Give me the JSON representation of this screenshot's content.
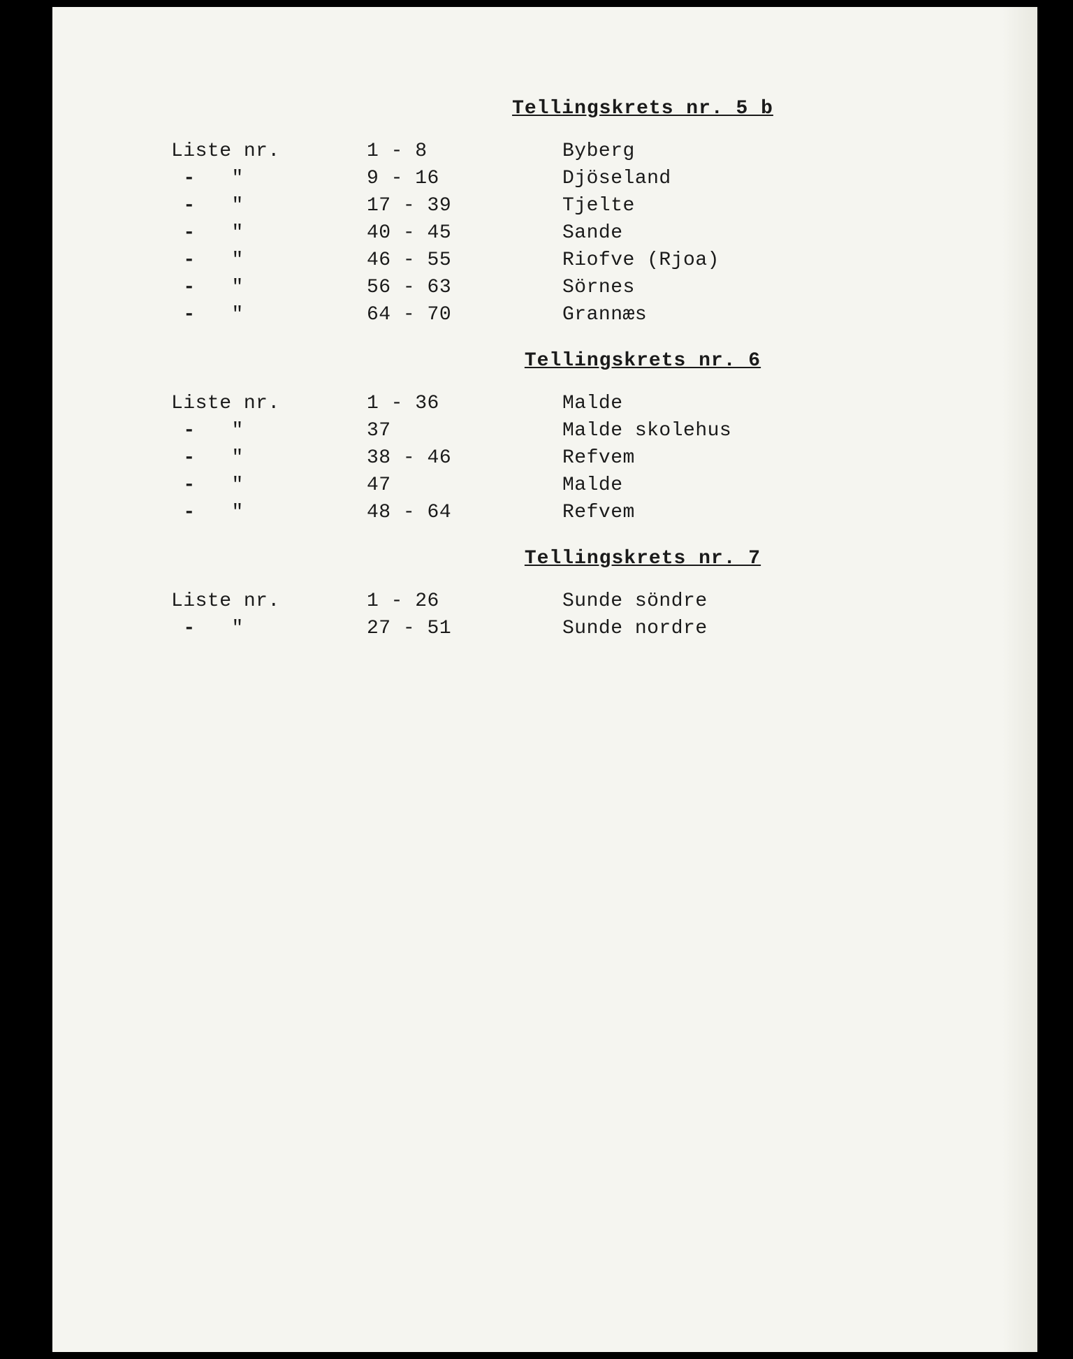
{
  "colors": {
    "page_bg": "#f5f5f0",
    "frame_bg": "#000000",
    "text": "#1a1a1a"
  },
  "typography": {
    "font_family": "Courier New",
    "font_size_pt": 21,
    "heading_weight": "bold"
  },
  "sections": [
    {
      "heading": "Tellingskrets nr. 5 b",
      "label": "Liste nr.",
      "rows": [
        {
          "range": "1 - 8",
          "name": "Byberg"
        },
        {
          "range": "9 - 16",
          "name": "Djöseland"
        },
        {
          "range": "17 - 39",
          "name": "Tjelte"
        },
        {
          "range": "40 - 45",
          "name": "Sande"
        },
        {
          "range": "46 - 55",
          "name": "Riofve (Rjoa)"
        },
        {
          "range": "56 - 63",
          "name": "Sörnes"
        },
        {
          "range": "64 - 70",
          "name": "Grannæs"
        }
      ]
    },
    {
      "heading": "Tellingskrets nr. 6",
      "label": "Liste nr.",
      "rows": [
        {
          "range": "1 - 36",
          "name": "Malde"
        },
        {
          "range": "37",
          "name": "Malde skolehus"
        },
        {
          "range": "38 - 46",
          "name": "Refvem"
        },
        {
          "range": "47",
          "name": "Malde"
        },
        {
          "range": "48 - 64",
          "name": "Refvem"
        }
      ]
    },
    {
      "heading": "Tellingskrets nr. 7",
      "label": "Liste nr.",
      "rows": [
        {
          "range": "1 - 26",
          "name": "Sunde söndre"
        },
        {
          "range": "27 - 51",
          "name": "Sunde nordre"
        }
      ]
    }
  ],
  "ditto_marks": {
    "dash": "-",
    "quote": "\""
  }
}
